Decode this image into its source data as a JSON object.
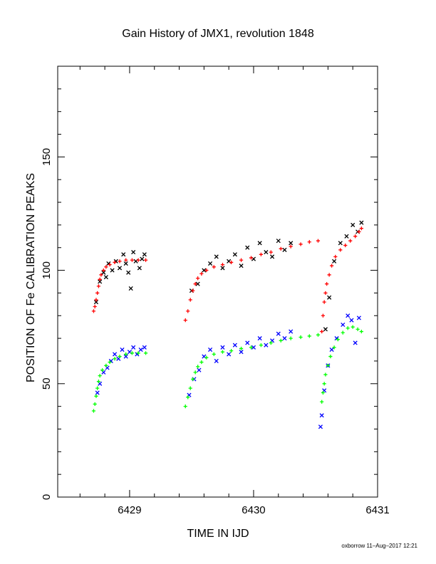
{
  "chart_data": {
    "type": "scatter",
    "title": "Gain History of JMX1, revolution 1848",
    "xlabel": "TIME IN IJD",
    "ylabel": "POSITION OF Fe CALIBRATION PEAKS",
    "footer": "oxborrow 11–Aug–2017 12:21",
    "xlim": [
      6428.42,
      6431.0
    ],
    "ylim": [
      0,
      190
    ],
    "x_ticks": [
      6429,
      6430,
      6431
    ],
    "y_ticks": [
      0,
      50,
      100,
      150
    ],
    "grid": false,
    "colors": {
      "high_fit": "#ff0000",
      "high_data": "#000000",
      "low_fit": "#00ff00",
      "low_data": "#0000ff"
    },
    "series": [
      {
        "role": "high_fit",
        "marker": "+",
        "points": [
          [
            6428.71,
            82
          ],
          [
            6428.72,
            84
          ],
          [
            6428.73,
            87
          ],
          [
            6428.74,
            90
          ],
          [
            6428.75,
            93
          ],
          [
            6428.76,
            96
          ],
          [
            6428.77,
            98
          ],
          [
            6428.79,
            100
          ],
          [
            6428.81,
            101.5
          ],
          [
            6428.84,
            102.5
          ],
          [
            6428.88,
            103.5
          ],
          [
            6428.92,
            104
          ],
          [
            6428.97,
            104.5
          ],
          [
            6429.02,
            104.5
          ],
          [
            6429.07,
            104.5
          ],
          [
            6429.13,
            104.5
          ],
          [
            6429.45,
            78
          ],
          [
            6429.47,
            82
          ],
          [
            6429.49,
            87
          ],
          [
            6429.51,
            91
          ],
          [
            6429.53,
            94
          ],
          [
            6429.55,
            96.5
          ],
          [
            6429.58,
            98.5
          ],
          [
            6429.62,
            100
          ],
          [
            6429.68,
            101.5
          ],
          [
            6429.75,
            102.5
          ],
          [
            6429.82,
            103.5
          ],
          [
            6429.9,
            104.5
          ],
          [
            6429.98,
            105.5
          ],
          [
            6430.06,
            107
          ],
          [
            6430.14,
            108
          ],
          [
            6430.22,
            109.5
          ],
          [
            6430.3,
            110.5
          ],
          [
            6430.38,
            111.5
          ],
          [
            6430.45,
            112.5
          ],
          [
            6430.52,
            113
          ],
          [
            6430.55,
            73
          ],
          [
            6430.56,
            80
          ],
          [
            6430.57,
            86
          ],
          [
            6430.58,
            90
          ],
          [
            6430.59,
            94
          ],
          [
            6430.61,
            98
          ],
          [
            6430.63,
            102
          ],
          [
            6430.66,
            106
          ],
          [
            6430.7,
            109
          ],
          [
            6430.74,
            111
          ],
          [
            6430.78,
            113
          ],
          [
            6430.82,
            115
          ],
          [
            6430.85,
            117
          ],
          [
            6430.87,
            118.5
          ]
        ]
      },
      {
        "role": "high_data",
        "marker": "x",
        "points": [
          [
            6428.73,
            86
          ],
          [
            6428.76,
            95
          ],
          [
            6428.79,
            99
          ],
          [
            6428.81,
            97
          ],
          [
            6428.83,
            103
          ],
          [
            6428.86,
            100
          ],
          [
            6428.89,
            104
          ],
          [
            6428.92,
            101
          ],
          [
            6428.95,
            107
          ],
          [
            6428.97,
            103
          ],
          [
            6428.99,
            99
          ],
          [
            6429.01,
            92
          ],
          [
            6429.03,
            108
          ],
          [
            6429.05,
            104
          ],
          [
            6429.08,
            101
          ],
          [
            6429.1,
            105
          ],
          [
            6429.12,
            107
          ],
          [
            6429.5,
            91
          ],
          [
            6429.55,
            94
          ],
          [
            6429.6,
            100
          ],
          [
            6429.65,
            103
          ],
          [
            6429.7,
            106
          ],
          [
            6429.75,
            101
          ],
          [
            6429.8,
            104
          ],
          [
            6429.85,
            107
          ],
          [
            6429.9,
            102
          ],
          [
            6429.95,
            110
          ],
          [
            6430.0,
            105
          ],
          [
            6430.05,
            112
          ],
          [
            6430.1,
            108
          ],
          [
            6430.15,
            106
          ],
          [
            6430.2,
            113
          ],
          [
            6430.25,
            109
          ],
          [
            6430.3,
            112
          ],
          [
            6430.58,
            74
          ],
          [
            6430.61,
            88
          ],
          [
            6430.65,
            104
          ],
          [
            6430.7,
            112
          ],
          [
            6430.75,
            115
          ],
          [
            6430.8,
            120
          ],
          [
            6430.84,
            117
          ],
          [
            6430.87,
            121
          ]
        ]
      },
      {
        "role": "low_fit",
        "marker": "+",
        "points": [
          [
            6428.71,
            38
          ],
          [
            6428.72,
            41
          ],
          [
            6428.73,
            44.5
          ],
          [
            6428.74,
            48
          ],
          [
            6428.75,
            51
          ],
          [
            6428.76,
            53.5
          ],
          [
            6428.78,
            56
          ],
          [
            6428.81,
            58
          ],
          [
            6428.84,
            59.5
          ],
          [
            6428.88,
            61
          ],
          [
            6428.92,
            62
          ],
          [
            6428.97,
            63
          ],
          [
            6429.02,
            63.5
          ],
          [
            6429.07,
            63.5
          ],
          [
            6429.13,
            63.5
          ],
          [
            6429.45,
            40
          ],
          [
            6429.47,
            44
          ],
          [
            6429.49,
            48
          ],
          [
            6429.51,
            52
          ],
          [
            6429.53,
            55
          ],
          [
            6429.55,
            57.5
          ],
          [
            6429.58,
            59.5
          ],
          [
            6429.62,
            61.5
          ],
          [
            6429.68,
            63
          ],
          [
            6429.75,
            64
          ],
          [
            6429.82,
            64.5
          ],
          [
            6429.9,
            65.5
          ],
          [
            6429.98,
            66
          ],
          [
            6430.06,
            67
          ],
          [
            6430.14,
            68
          ],
          [
            6430.22,
            69
          ],
          [
            6430.3,
            70
          ],
          [
            6430.38,
            70.5
          ],
          [
            6430.45,
            71
          ],
          [
            6430.52,
            71.5
          ],
          [
            6430.55,
            42
          ],
          [
            6430.56,
            46
          ],
          [
            6430.57,
            50
          ],
          [
            6430.58,
            54
          ],
          [
            6430.6,
            58
          ],
          [
            6430.62,
            62
          ],
          [
            6430.65,
            66
          ],
          [
            6430.68,
            69.5
          ],
          [
            6430.72,
            72.5
          ],
          [
            6430.76,
            74.5
          ],
          [
            6430.8,
            75
          ],
          [
            6430.84,
            74
          ],
          [
            6430.87,
            73
          ]
        ]
      },
      {
        "role": "low_data",
        "marker": "x",
        "points": [
          [
            6428.74,
            46
          ],
          [
            6428.76,
            50
          ],
          [
            6428.79,
            55
          ],
          [
            6428.82,
            57
          ],
          [
            6428.85,
            60
          ],
          [
            6428.88,
            63
          ],
          [
            6428.91,
            61
          ],
          [
            6428.94,
            65
          ],
          [
            6428.97,
            62
          ],
          [
            6429.0,
            64
          ],
          [
            6429.03,
            66
          ],
          [
            6429.06,
            63
          ],
          [
            6429.09,
            65
          ],
          [
            6429.12,
            66
          ],
          [
            6429.48,
            45
          ],
          [
            6429.52,
            52
          ],
          [
            6429.56,
            56
          ],
          [
            6429.6,
            62
          ],
          [
            6429.65,
            65
          ],
          [
            6429.7,
            60
          ],
          [
            6429.75,
            66
          ],
          [
            6429.8,
            63
          ],
          [
            6429.85,
            67
          ],
          [
            6429.9,
            64
          ],
          [
            6429.95,
            68
          ],
          [
            6430.0,
            66
          ],
          [
            6430.05,
            70
          ],
          [
            6430.1,
            67
          ],
          [
            6430.15,
            69
          ],
          [
            6430.2,
            72
          ],
          [
            6430.25,
            70
          ],
          [
            6430.3,
            73
          ],
          [
            6430.54,
            31
          ],
          [
            6430.55,
            36
          ],
          [
            6430.57,
            47
          ],
          [
            6430.6,
            58
          ],
          [
            6430.63,
            65
          ],
          [
            6430.67,
            70
          ],
          [
            6430.72,
            76
          ],
          [
            6430.76,
            80
          ],
          [
            6430.79,
            78
          ],
          [
            6430.82,
            68
          ],
          [
            6430.85,
            79
          ]
        ]
      }
    ]
  }
}
